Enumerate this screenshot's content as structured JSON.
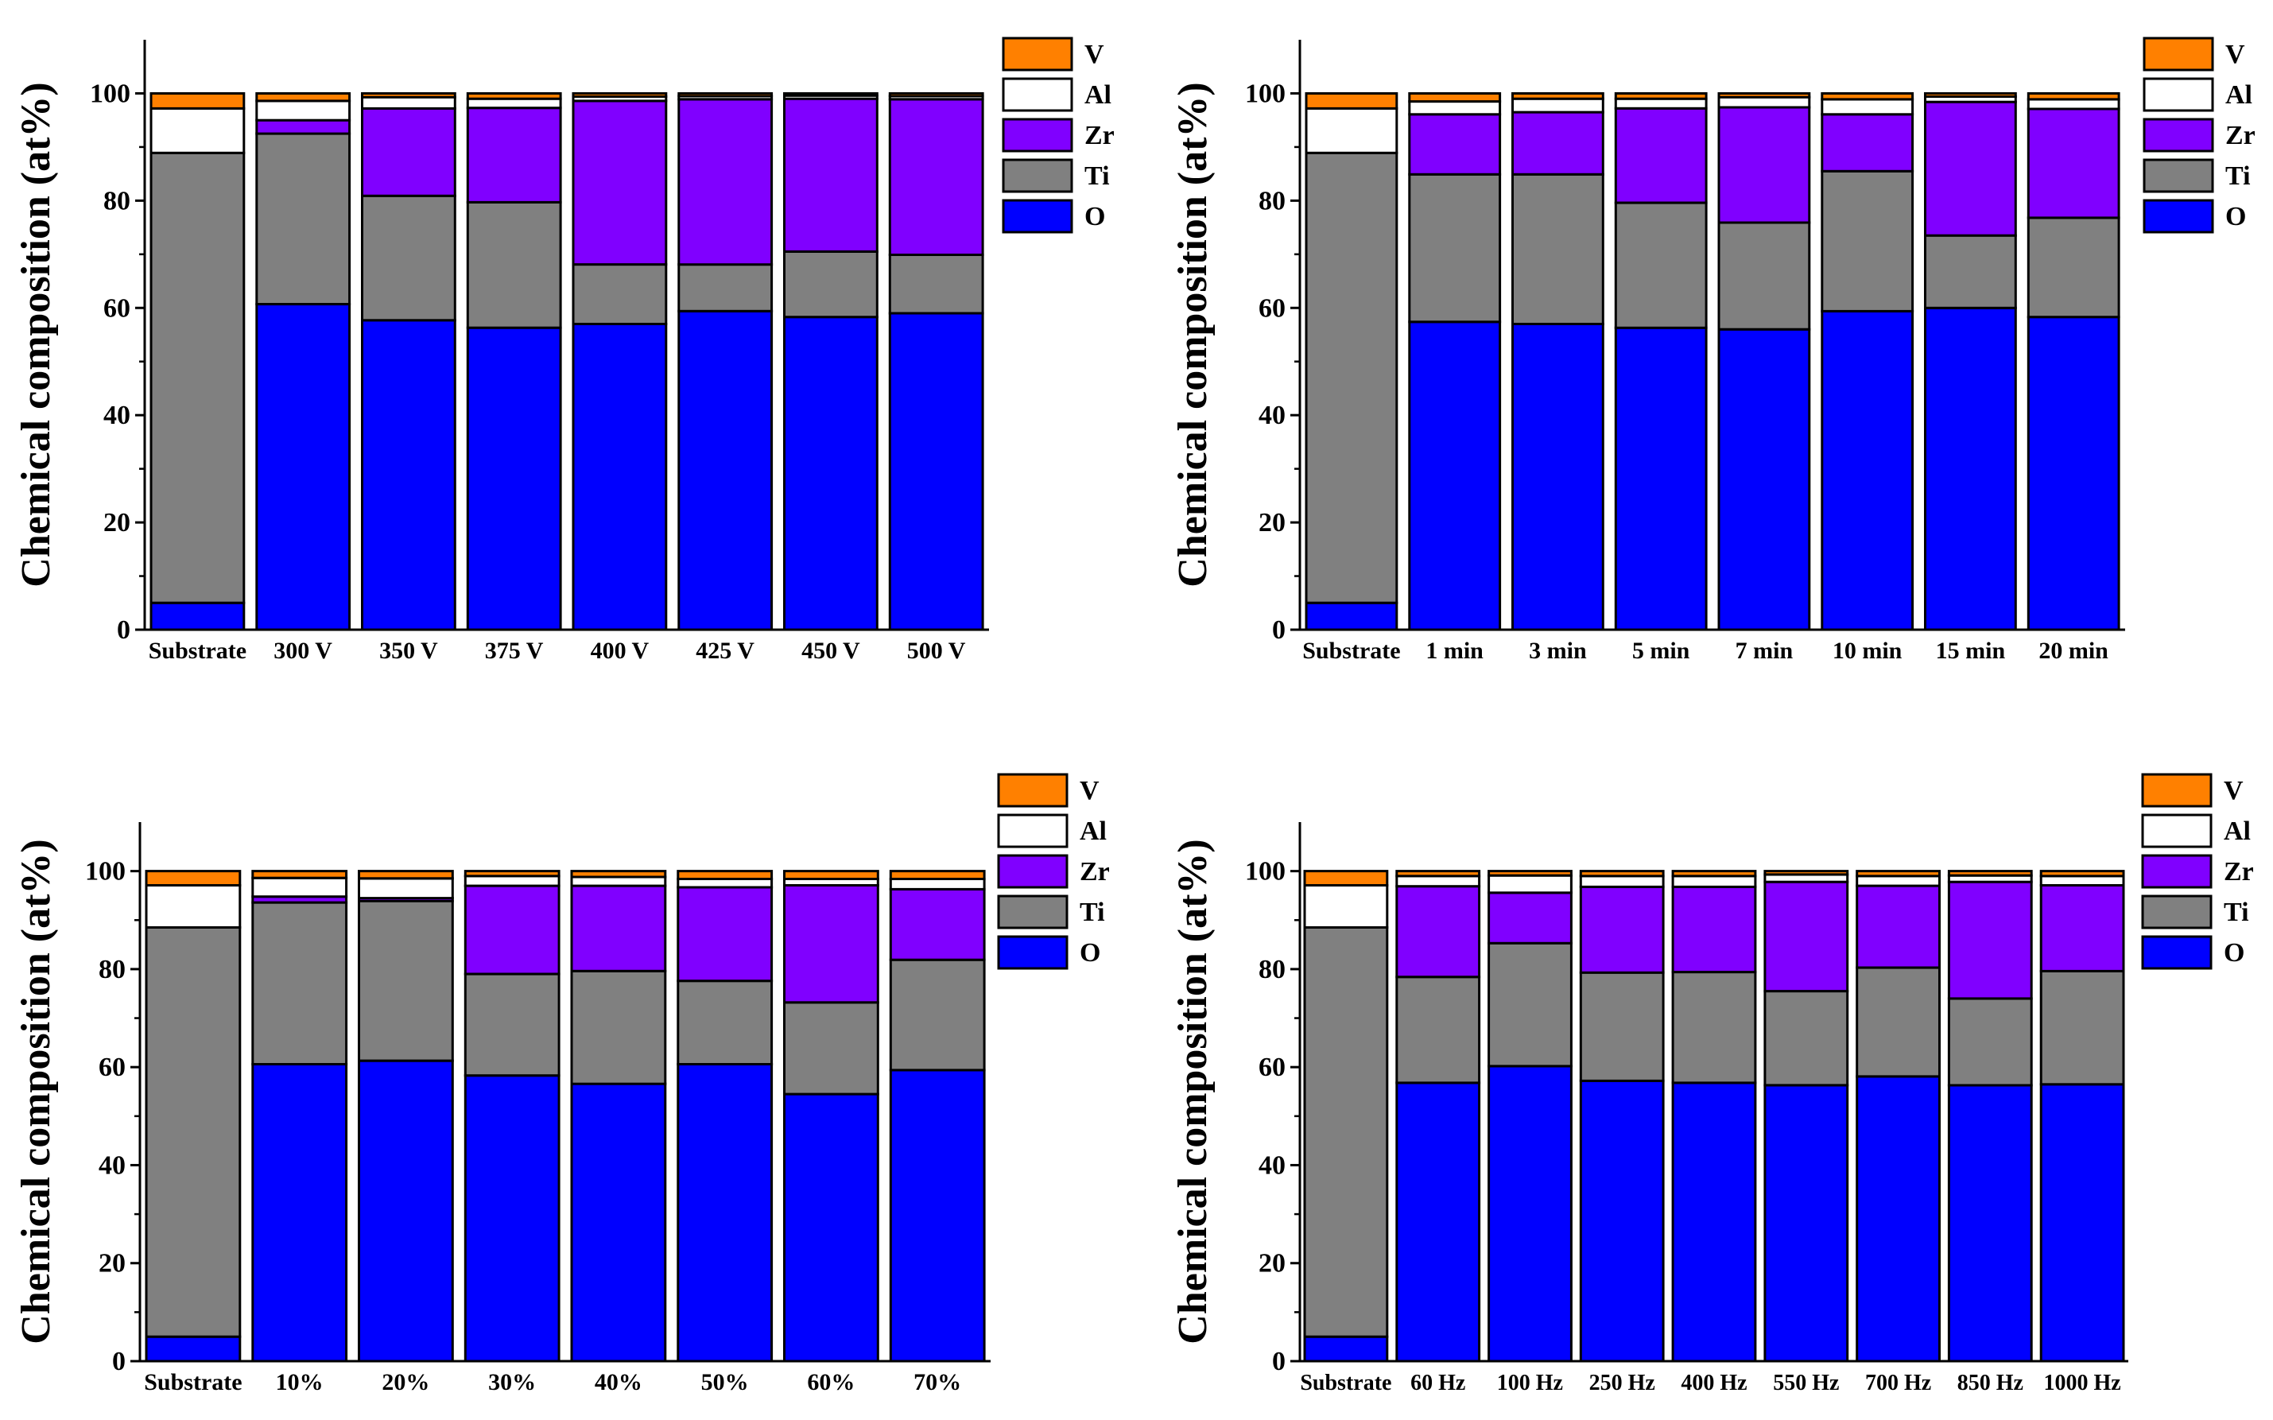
{
  "colors": {
    "O": "#0000ff",
    "Ti": "#808080",
    "Zr": "#8000ff",
    "Al": "#ffffff",
    "V": "#ff8000",
    "outline": "#000000"
  },
  "chart_data": [
    {
      "type": "stacked-bar",
      "title": "",
      "ylabel": "Chemical composition (at%)",
      "ylim": [
        0,
        110
      ],
      "yticks": [
        0,
        20,
        40,
        60,
        80,
        100
      ],
      "legend": [
        "V",
        "Al",
        "Zr",
        "Ti",
        "O"
      ],
      "legend_position": "top-right outside",
      "categories": [
        "Substrate",
        "300 V",
        "350 V",
        "375 V",
        "400 V",
        "425 V",
        "450 V",
        "500 V"
      ],
      "series": [
        {
          "name": "O",
          "values": [
            5,
            60.7,
            57.7,
            56.3,
            57,
            59.4,
            58.3,
            59
          ]
        },
        {
          "name": "Ti",
          "values": [
            83.9,
            31.8,
            23.2,
            23.4,
            11.1,
            8.7,
            12.2,
            10.9
          ]
        },
        {
          "name": "Zr",
          "values": [
            0,
            2.5,
            16.3,
            17.6,
            30.5,
            30.8,
            28.5,
            29
          ]
        },
        {
          "name": "Al",
          "values": [
            8.3,
            3.6,
            2.1,
            1.7,
            0.8,
            0.6,
            0.6,
            0.6
          ]
        },
        {
          "name": "V",
          "values": [
            2.8,
            1.4,
            0.7,
            1,
            0.6,
            0.5,
            0.4,
            0.5
          ]
        }
      ]
    },
    {
      "type": "stacked-bar",
      "title": "",
      "ylabel": "Chemical composition (at%)",
      "ylim": [
        0,
        110
      ],
      "yticks": [
        0,
        20,
        40,
        60,
        80,
        100
      ],
      "legend": [
        "V",
        "Al",
        "Zr",
        "Ti",
        "O"
      ],
      "legend_position": "top-right outside",
      "categories": [
        "Substrate",
        "1 min",
        "3 min",
        "5 min",
        "7 min",
        "10 min",
        "15 min",
        "20 min"
      ],
      "series": [
        {
          "name": "O",
          "values": [
            5,
            57.4,
            57,
            56.3,
            56,
            59.4,
            60,
            58.3
          ]
        },
        {
          "name": "Ti",
          "values": [
            83.9,
            27.5,
            27.9,
            23.3,
            19.9,
            26.1,
            13.5,
            18.5
          ]
        },
        {
          "name": "Zr",
          "values": [
            0,
            11.2,
            11.6,
            17.6,
            21.5,
            10.6,
            24.9,
            20.3
          ]
        },
        {
          "name": "Al",
          "values": [
            8.3,
            2.4,
            2.5,
            1.8,
            1.9,
            2.8,
            1,
            1.8
          ]
        },
        {
          "name": "V",
          "values": [
            2.8,
            1.5,
            1,
            1,
            0.7,
            1.1,
            0.6,
            1.1
          ]
        }
      ]
    },
    {
      "type": "stacked-bar",
      "title": "",
      "ylabel": "Chemical composition (at%)",
      "ylim": [
        0,
        110
      ],
      "yticks": [
        0,
        20,
        40,
        60,
        80,
        100
      ],
      "legend": [
        "V",
        "Al",
        "Zr",
        "Ti",
        "O"
      ],
      "legend_position": "top-right outside",
      "categories": [
        "Substrate",
        "10%",
        "20%",
        "30%",
        "40%",
        "50%",
        "60%",
        "70%"
      ],
      "series": [
        {
          "name": "O",
          "values": [
            5,
            60.6,
            61.3,
            58.3,
            56.6,
            60.6,
            54.5,
            59.4
          ]
        },
        {
          "name": "Ti",
          "values": [
            83.5,
            33,
            32.6,
            20.7,
            23,
            17,
            18.7,
            22.5
          ]
        },
        {
          "name": "Zr",
          "values": [
            0,
            1.2,
            0.6,
            18,
            17.4,
            19.1,
            23.9,
            14.4
          ]
        },
        {
          "name": "Al",
          "values": [
            8.6,
            3.8,
            4,
            2,
            1.8,
            1.7,
            1.3,
            2.1
          ]
        },
        {
          "name": "V",
          "values": [
            2.9,
            1.4,
            1.5,
            1,
            1.2,
            1.6,
            1.6,
            1.6
          ]
        }
      ]
    },
    {
      "type": "stacked-bar",
      "title": "",
      "ylabel": "Chemical composition (at%)",
      "ylim": [
        0,
        110
      ],
      "yticks": [
        0,
        20,
        40,
        60,
        80,
        100
      ],
      "legend": [
        "V",
        "Al",
        "Zr",
        "Ti",
        "O"
      ],
      "legend_position": "top-right outside",
      "categories": [
        "Substrate",
        "60 Hz",
        "100 Hz",
        "250 Hz",
        "400 Hz",
        "550 Hz",
        "700 Hz",
        "850 Hz",
        "1000 Hz"
      ],
      "series": [
        {
          "name": "O",
          "values": [
            5,
            56.8,
            60.2,
            57.2,
            56.8,
            56.3,
            58.1,
            56.3,
            56.5
          ]
        },
        {
          "name": "Ti",
          "values": [
            83.5,
            21.6,
            25.1,
            22.1,
            22.6,
            19.2,
            22.2,
            17.7,
            23.1
          ]
        },
        {
          "name": "Zr",
          "values": [
            0,
            18.5,
            10.3,
            17.5,
            17.4,
            22.3,
            16.7,
            23.8,
            17.5
          ]
        },
        {
          "name": "Al",
          "values": [
            8.6,
            2.1,
            3.5,
            2.2,
            2.2,
            1.5,
            2,
            1.3,
            1.9
          ]
        },
        {
          "name": "V",
          "values": [
            2.9,
            1,
            0.9,
            1,
            1,
            0.7,
            1,
            0.9,
            1
          ]
        }
      ]
    }
  ]
}
